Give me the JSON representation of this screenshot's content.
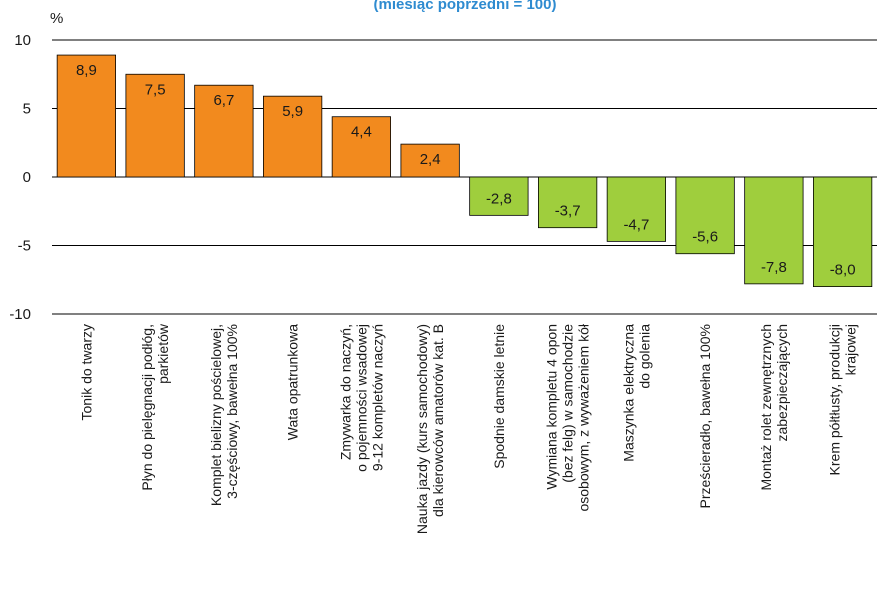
{
  "chart_data": {
    "type": "bar",
    "title": "",
    "subtitle": "(miesiąc poprzedni = 100)",
    "ylabel": "%",
    "xlabel": "",
    "ylim": [
      -10,
      10
    ],
    "yticks": [
      "10",
      "5",
      "0",
      "-5",
      "-10"
    ],
    "grid": true,
    "colors": {
      "positive": "#f28a1e",
      "negative": "#9fce3d",
      "grid": "#000000",
      "subtitle": "#2e8bd0"
    },
    "categories": [
      [
        "Tonik do twarzy"
      ],
      [
        "Płyn do pielęgnacji podłóg,",
        "parkietów"
      ],
      [
        "Komplet bielizny pościelowej,",
        "3-częściowy, bawełna 100%"
      ],
      [
        "Wata opatrunkowa"
      ],
      [
        "Zmywarka do naczyń,",
        "o pojemności wsadowej",
        "9-12 kompletów naczyń"
      ],
      [
        "Nauka jazdy (kurs samochodowy)",
        "dla kierowców  amatorów kat. B"
      ],
      [
        "Spodnie damskie letnie"
      ],
      [
        "Wymiana kompletu 4 opon",
        "(bez felg) w samochodzie",
        "osobowym, z wyważeniem kół"
      ],
      [
        "Maszynka elektryczna",
        "do golenia"
      ],
      [
        "Prześcieradło, bawełna 100%"
      ],
      [
        "Montaż rolet zewnętrznych",
        "zabezpieczających"
      ],
      [
        "Krem półtłusty, produkcji",
        "krajowej"
      ]
    ],
    "values": [
      8.9,
      7.5,
      6.7,
      5.9,
      4.4,
      2.4,
      -2.8,
      -3.7,
      -4.7,
      -5.6,
      -7.8,
      -8.0
    ],
    "value_labels": [
      "8,9",
      "7,5",
      "6,7",
      "5,9",
      "4,4",
      "2,4",
      "-2,8",
      "-3,7",
      "-4,7",
      "-5,6",
      "-7,8",
      "-8,0"
    ]
  }
}
